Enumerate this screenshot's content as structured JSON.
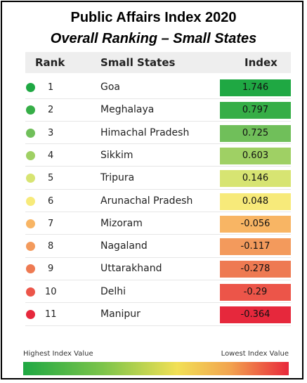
{
  "chart_data": {
    "type": "table",
    "title": "Public Affairs Index 2020",
    "subtitle": "Overall Ranking – Small States",
    "columns": [
      "Rank",
      "Small States",
      "Index"
    ],
    "rows": [
      {
        "rank": "1",
        "state": "Goa",
        "index": "1.746",
        "color": "#1fa843"
      },
      {
        "rank": "2",
        "state": "Meghalaya",
        "index": "0.797",
        "color": "#36ae47"
      },
      {
        "rank": "3",
        "state": "Himachal Pradesh",
        "index": "0.725",
        "color": "#70bf5a"
      },
      {
        "rank": "4",
        "state": "Sikkim",
        "index": "0.603",
        "color": "#9fd064"
      },
      {
        "rank": "5",
        "state": "Tripura",
        "index": "0.146",
        "color": "#d7e472"
      },
      {
        "rank": "6",
        "state": "Arunachal Pradesh",
        "index": "0.048",
        "color": "#f7ea7a"
      },
      {
        "rank": "7",
        "state": "Mizoram",
        "index": "-0.056",
        "color": "#f8b564"
      },
      {
        "rank": "8",
        "state": "Nagaland",
        "index": "-0.117",
        "color": "#f39a5c"
      },
      {
        "rank": "9",
        "state": "Uttarakhand",
        "index": "-0.278",
        "color": "#ee7a52"
      },
      {
        "rank": "10",
        "state": "Delhi",
        "index": "-0.29",
        "color": "#ec5549"
      },
      {
        "rank": "11",
        "state": "Manipur",
        "index": "-0.364",
        "color": "#e6283c"
      }
    ],
    "legend": {
      "left_label": "Highest Index Value",
      "right_label": "Lowest Index Value"
    }
  }
}
